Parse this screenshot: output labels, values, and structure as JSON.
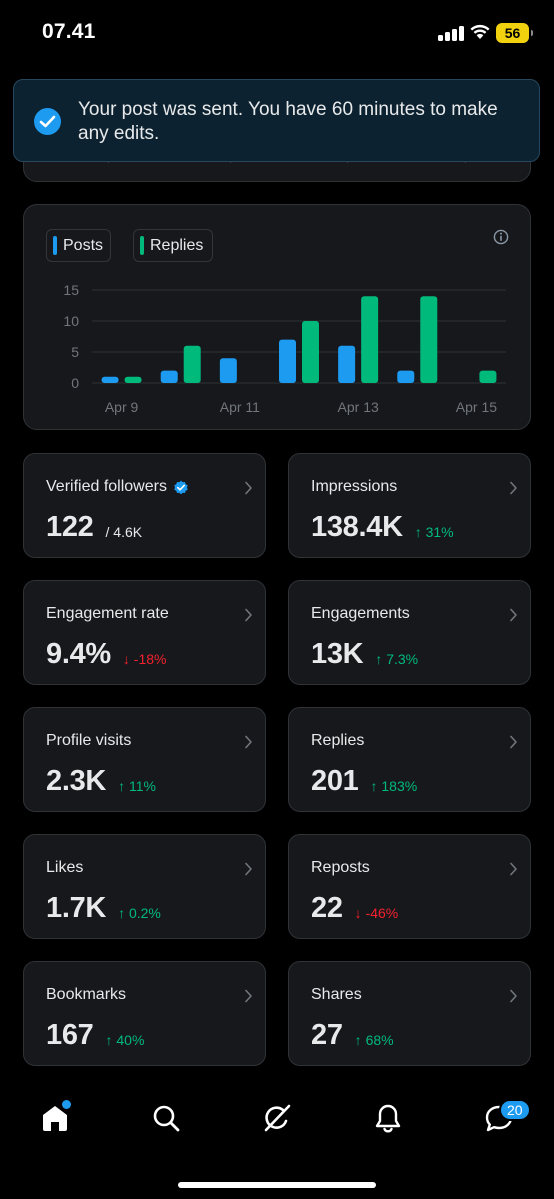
{
  "status_bar": {
    "time": "07.41",
    "battery": "56"
  },
  "toast": {
    "message": "Your post was sent. You have 60 minutes to make any edits.",
    "icon": "check-circle-icon"
  },
  "chart": {
    "legend": [
      {
        "label": "Posts",
        "color": "#1d9bf0"
      },
      {
        "label": "Replies",
        "color": "#00ba7c"
      }
    ],
    "info_icon": "info-icon"
  },
  "chart_data": {
    "type": "bar",
    "categories": [
      "Apr 9",
      "Apr 10",
      "Apr 11",
      "Apr 12",
      "Apr 13",
      "Apr 14",
      "Apr 15"
    ],
    "x_tick_labels": [
      "Apr 9",
      "Apr 11",
      "Apr 13",
      "Apr 15"
    ],
    "y_tick_labels": [
      "0",
      "5",
      "10",
      "15"
    ],
    "series": [
      {
        "name": "Posts",
        "color": "#1d9bf0",
        "values": [
          1,
          2,
          4,
          7,
          6,
          2,
          0
        ]
      },
      {
        "name": "Replies",
        "color": "#00ba7c",
        "values": [
          1,
          6,
          0,
          10,
          14,
          14,
          2
        ]
      }
    ],
    "ylim": [
      0,
      15
    ],
    "grid": true,
    "legend_position": "top-left"
  },
  "metrics": [
    {
      "label": "Verified followers",
      "value": "122",
      "sub": "/ 4.6K",
      "verified": true
    },
    {
      "label": "Impressions",
      "value": "138.4K",
      "change": "31%",
      "direction": "up"
    },
    {
      "label": "Engagement rate",
      "value": "9.4%",
      "change": "-18%",
      "direction": "down"
    },
    {
      "label": "Engagements",
      "value": "13K",
      "change": "7.3%",
      "direction": "up"
    },
    {
      "label": "Profile visits",
      "value": "2.3K",
      "change": "11%",
      "direction": "up"
    },
    {
      "label": "Replies",
      "value": "201",
      "change": "183%",
      "direction": "up"
    },
    {
      "label": "Likes",
      "value": "1.7K",
      "change": "0.2%",
      "direction": "up"
    },
    {
      "label": "Reposts",
      "value": "22",
      "change": "-46%",
      "direction": "down"
    },
    {
      "label": "Bookmarks",
      "value": "167",
      "change": "40%",
      "direction": "up"
    },
    {
      "label": "Shares",
      "value": "27",
      "change": "68%",
      "direction": "up"
    }
  ],
  "nav": {
    "items": [
      "home-icon",
      "search-icon",
      "grok-icon",
      "notifications-icon",
      "messages-icon"
    ],
    "messages_badge": "20"
  }
}
